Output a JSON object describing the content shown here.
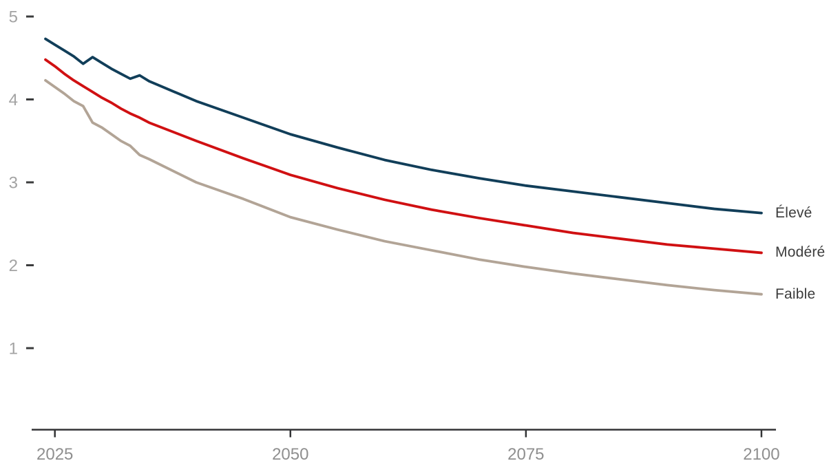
{
  "chart_data": {
    "type": "line",
    "x": [
      2024,
      2025,
      2026,
      2027,
      2028,
      2029,
      2030,
      2031,
      2032,
      2033,
      2034,
      2035,
      2040,
      2045,
      2050,
      2055,
      2060,
      2065,
      2070,
      2075,
      2080,
      2085,
      2090,
      2095,
      2100
    ],
    "series": [
      {
        "name": "Élevé",
        "color": "#113e59",
        "values": [
          4.73,
          4.66,
          4.59,
          4.52,
          4.43,
          4.51,
          4.44,
          4.37,
          4.31,
          4.25,
          4.29,
          4.22,
          3.98,
          3.78,
          3.58,
          3.42,
          3.27,
          3.15,
          3.05,
          2.96,
          2.89,
          2.82,
          2.75,
          2.68,
          2.63
        ]
      },
      {
        "name": "Modéré",
        "color": "#d01012",
        "values": [
          4.48,
          4.4,
          4.31,
          4.23,
          4.16,
          4.09,
          4.02,
          3.96,
          3.89,
          3.83,
          3.78,
          3.72,
          3.5,
          3.29,
          3.09,
          2.93,
          2.79,
          2.67,
          2.57,
          2.48,
          2.39,
          2.32,
          2.25,
          2.2,
          2.15
        ]
      },
      {
        "name": "Faible",
        "color": "#b2a496",
        "values": [
          4.23,
          4.15,
          4.07,
          3.98,
          3.92,
          3.72,
          3.66,
          3.58,
          3.5,
          3.44,
          3.33,
          3.28,
          3.0,
          2.8,
          2.58,
          2.43,
          2.29,
          2.18,
          2.07,
          1.98,
          1.9,
          1.83,
          1.76,
          1.7,
          1.65
        ]
      }
    ],
    "x_ticks": [
      2025,
      2050,
      2075,
      2100
    ],
    "y_ticks": [
      1,
      2,
      3,
      4,
      5
    ],
    "xlim": [
      2024,
      2100
    ],
    "ylim": [
      1,
      5
    ],
    "grid": false,
    "legend_position": "right-end-labels"
  },
  "colors": {
    "background": "#ffffff",
    "axis_line": "#333436",
    "y_tick_dash": "#3b3c3d",
    "x_tick_label": "#8f8f8f",
    "y_tick_label": "#a3a3a3",
    "legend_text": "#3c3c3c"
  }
}
